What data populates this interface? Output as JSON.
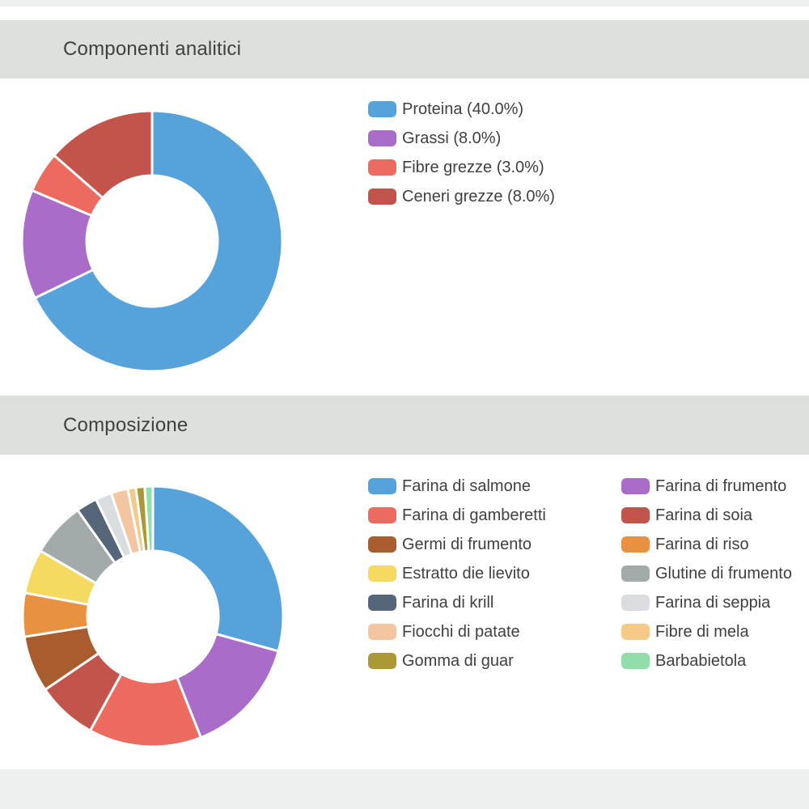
{
  "theme": {
    "background": "#ffffff",
    "section_header_bg": "#dde1db",
    "adjacent_strip_bg": "#edf0ee",
    "section_header_text_color": "#3e4142",
    "legend_text_color": "#3f4040",
    "segment_border_color": "#ffffff"
  },
  "sections": [
    {
      "title": "Componenti analitici"
    },
    {
      "title": "Composizione"
    }
  ],
  "chart_data": [
    {
      "type": "pie",
      "subtype": "donut",
      "title": "Componenti analitici",
      "labels": [
        "Proteina",
        "Grassi",
        "Fibre grezze",
        "Ceneri grezze"
      ],
      "values": [
        40.0,
        8.0,
        3.0,
        8.0
      ],
      "value_unit": "%",
      "legend_labels": [
        "Proteina (40.0%)",
        "Grassi (8.0%)",
        "Fibre grezze (3.0%)",
        "Ceneri grezze (8.0%)"
      ],
      "colors": [
        "#56a3dc",
        "#a96cc8",
        "#ec6a5e",
        "#c2544b"
      ],
      "start_angle_deg": 0,
      "clockwise": true,
      "inner_radius_ratio": 0.5,
      "legend_position": "right",
      "legend_columns": 1
    },
    {
      "type": "pie",
      "subtype": "donut",
      "title": "Composizione",
      "labels": [
        "Farina di salmone",
        "Farina di frumento",
        "Farina di gamberetti",
        "Farina di soia",
        "Germi di frumento",
        "Farina di riso",
        "Estratto die lievito",
        "Glutine di frumento",
        "Farina di krill",
        "Farina di seppia",
        "Fiocchi di patate",
        "Fibre di mela",
        "Gomma di guar",
        "Barbabietola"
      ],
      "values": [
        29.3,
        14.7,
        14.0,
        7.5,
        7.0,
        5.4,
        5.5,
        6.8,
        2.6,
        2.0,
        2.1,
        1.0,
        1.1,
        1.0
      ],
      "values_are_estimates_from_arc_angles": true,
      "colors": [
        "#56a3dc",
        "#a96cc8",
        "#ec6a5e",
        "#c2544b",
        "#a95c2d",
        "#e89140",
        "#f5d960",
        "#a2aba9",
        "#56657a",
        "#dadddf",
        "#f3c5a1",
        "#f5c987",
        "#ab9937",
        "#90dfab"
      ],
      "start_angle_deg": 0,
      "clockwise": true,
      "inner_radius_ratio": 0.5,
      "legend_position": "right",
      "legend_columns": 2
    }
  ]
}
